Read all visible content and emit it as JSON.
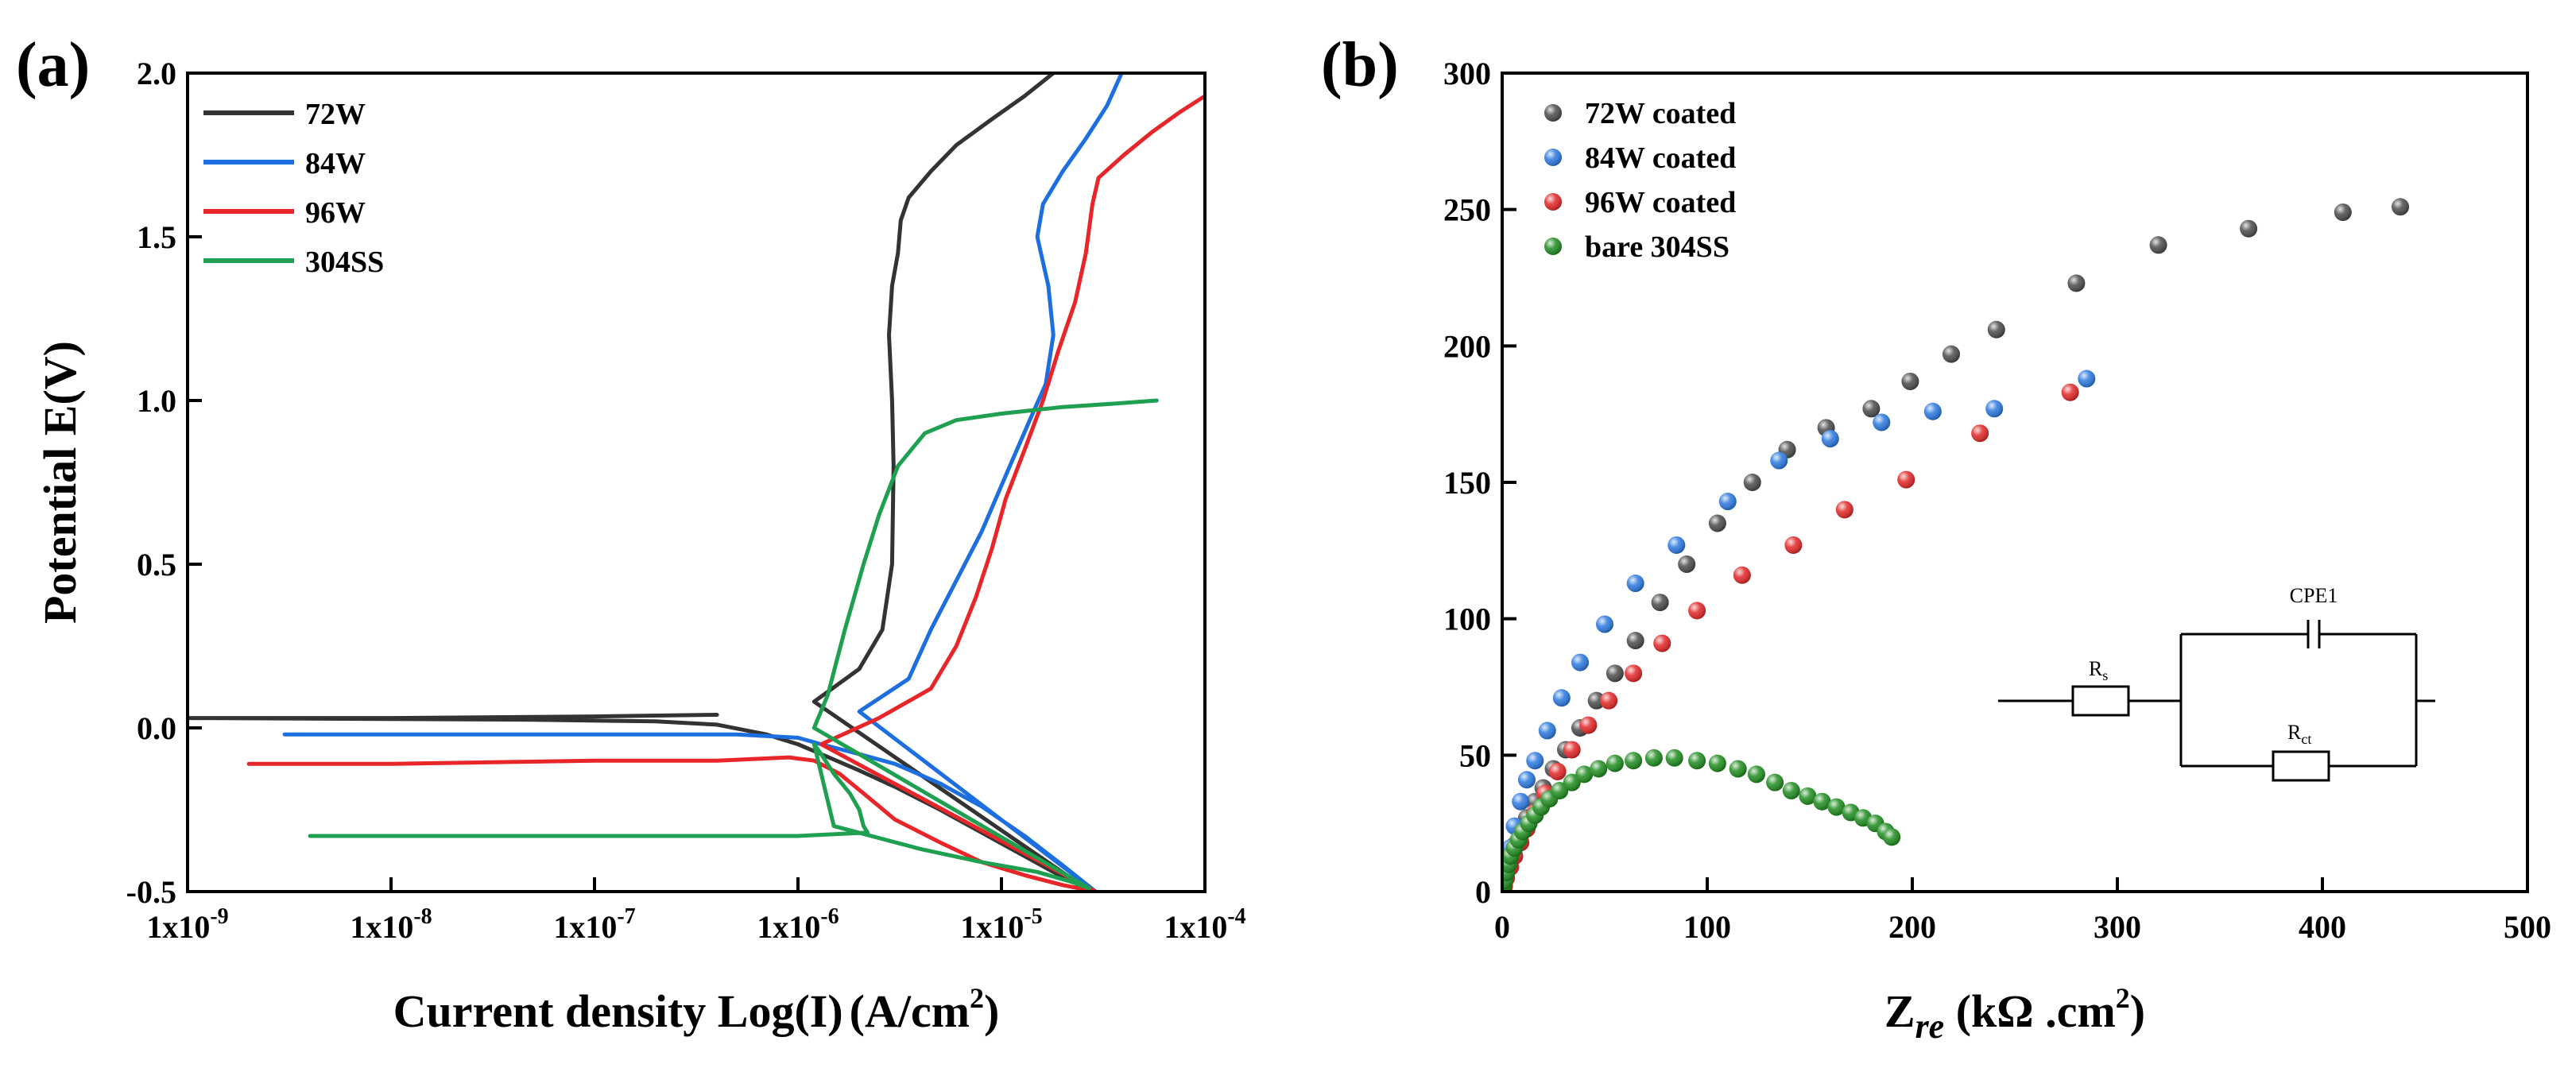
{
  "chart_data": [
    {
      "panel": "(a)",
      "type": "line",
      "title": "",
      "xlabel": "Current density Log(I)",
      "xlabel_unit": "A/cm",
      "xlabel_sup": "2",
      "ylabel": "Potential E(V)",
      "xscale": "log",
      "xlim": [
        1e-09,
        0.0001
      ],
      "ylim": [
        -0.5,
        2.0
      ],
      "x_ticks": [
        {
          "value": 1e-09,
          "mantissa": "1x10",
          "exp": "-9"
        },
        {
          "value": 1e-08,
          "mantissa": "1x10",
          "exp": "-8"
        },
        {
          "value": 1e-07,
          "mantissa": "1x10",
          "exp": "-7"
        },
        {
          "value": 1e-06,
          "mantissa": "1x10",
          "exp": "-6"
        },
        {
          "value": 1e-05,
          "mantissa": "1x10",
          "exp": "-5"
        },
        {
          "value": 0.0001,
          "mantissa": "1x10",
          "exp": "-4"
        }
      ],
      "y_ticks": [
        {
          "value": -0.5,
          "label": "-0.5"
        },
        {
          "value": 0.0,
          "label": "0.0"
        },
        {
          "value": 0.5,
          "label": "0.5"
        },
        {
          "value": 1.0,
          "label": "1.0"
        },
        {
          "value": 1.5,
          "label": "1.5"
        },
        {
          "value": 2.0,
          "label": "2.0"
        }
      ],
      "legend_position": "top-left",
      "series": [
        {
          "name": "72W",
          "color": "#333333",
          "points": [
            [
              4e-07,
              0.04
            ],
            [
              1e-07,
              0.035
            ],
            [
              1e-08,
              0.03
            ],
            [
              1e-09,
              0.03
            ],
            [
              5e-08,
              0.025
            ],
            [
              2e-07,
              0.02
            ],
            [
              4e-07,
              0.01
            ],
            [
              7e-07,
              -0.02
            ],
            [
              1e-06,
              -0.05
            ],
            [
              1.3e-06,
              -0.08
            ],
            [
              2e-06,
              -0.13
            ],
            [
              3e-06,
              -0.18
            ],
            [
              5e-06,
              -0.25
            ],
            [
              8e-06,
              -0.32
            ],
            [
              1.2e-05,
              -0.38
            ],
            [
              1.8e-05,
              -0.44
            ],
            [
              2.6e-05,
              -0.49
            ],
            [
              1.2e-06,
              0.08
            ],
            [
              2e-06,
              0.18
            ],
            [
              2.6e-06,
              0.3
            ],
            [
              2.9e-06,
              0.5
            ],
            [
              2.95e-06,
              0.8
            ],
            [
              2.9e-06,
              1.0
            ],
            [
              2.8e-06,
              1.2
            ],
            [
              2.9e-06,
              1.35
            ],
            [
              3.1e-06,
              1.45
            ],
            [
              3.2e-06,
              1.55
            ],
            [
              3.5e-06,
              1.62
            ],
            [
              4.5e-06,
              1.7
            ],
            [
              6e-06,
              1.78
            ],
            [
              9e-06,
              1.86
            ],
            [
              1.3e-05,
              1.93
            ],
            [
              1.8e-05,
              2.0
            ]
          ]
        },
        {
          "name": "84W",
          "color": "#1d6fe0",
          "points": [
            [
              3e-09,
              -0.02
            ],
            [
              1e-08,
              -0.02
            ],
            [
              1e-07,
              -0.02
            ],
            [
              5e-07,
              -0.02
            ],
            [
              1e-06,
              -0.03
            ],
            [
              1.3e-06,
              -0.05
            ],
            [
              2e-06,
              -0.08
            ],
            [
              3e-06,
              -0.11
            ],
            [
              5e-06,
              -0.17
            ],
            [
              8e-06,
              -0.24
            ],
            [
              1.3e-05,
              -0.33
            ],
            [
              2e-05,
              -0.42
            ],
            [
              2.9e-05,
              -0.5
            ],
            [
              2e-06,
              0.05
            ],
            [
              3.5e-06,
              0.15
            ],
            [
              4.5e-06,
              0.3
            ],
            [
              6e-06,
              0.45
            ],
            [
              8e-06,
              0.6
            ],
            [
              1.1e-05,
              0.8
            ],
            [
              1.4e-05,
              0.95
            ],
            [
              1.65e-05,
              1.05
            ],
            [
              1.8e-05,
              1.2
            ],
            [
              1.7e-05,
              1.35
            ],
            [
              1.5e-05,
              1.5
            ],
            [
              1.6e-05,
              1.6
            ],
            [
              2e-05,
              1.7
            ],
            [
              2.6e-05,
              1.8
            ],
            [
              3.3e-05,
              1.9
            ],
            [
              3.9e-05,
              2.0
            ]
          ]
        },
        {
          "name": "96W",
          "color": "#e8262a",
          "points": [
            [
              2e-09,
              -0.11
            ],
            [
              1e-08,
              -0.11
            ],
            [
              1e-07,
              -0.1
            ],
            [
              4e-07,
              -0.1
            ],
            [
              9e-07,
              -0.09
            ],
            [
              1.2e-06,
              -0.1
            ],
            [
              1.6e-06,
              -0.14
            ],
            [
              2.1e-06,
              -0.2
            ],
            [
              3e-06,
              -0.28
            ],
            [
              5e-06,
              -0.35
            ],
            [
              8e-06,
              -0.41
            ],
            [
              1.3e-05,
              -0.45
            ],
            [
              2e-05,
              -0.48
            ],
            [
              2.9e-05,
              -0.5
            ],
            [
              1.3e-06,
              -0.05
            ],
            [
              2.5e-06,
              0.03
            ],
            [
              4.5e-06,
              0.12
            ],
            [
              6e-06,
              0.25
            ],
            [
              7.5e-06,
              0.4
            ],
            [
              9e-06,
              0.55
            ],
            [
              1.05e-05,
              0.7
            ],
            [
              1.3e-05,
              0.85
            ],
            [
              1.6e-05,
              1.0
            ],
            [
              1.9e-05,
              1.15
            ],
            [
              2.3e-05,
              1.3
            ],
            [
              2.6e-05,
              1.45
            ],
            [
              2.8e-05,
              1.6
            ],
            [
              3e-05,
              1.68
            ],
            [
              4e-05,
              1.75
            ],
            [
              5.5e-05,
              1.82
            ],
            [
              7.5e-05,
              1.88
            ],
            [
              0.0001,
              1.93
            ]
          ]
        },
        {
          "name": "304SS",
          "color": "#1ea050",
          "points": [
            [
              4e-09,
              -0.33
            ],
            [
              1e-08,
              -0.33
            ],
            [
              1e-07,
              -0.33
            ],
            [
              1e-06,
              -0.33
            ],
            [
              2.2e-06,
              -0.32
            ],
            [
              2.1e-06,
              -0.3
            ],
            [
              2e-06,
              -0.25
            ],
            [
              1.8e-06,
              -0.2
            ],
            [
              1.5e-06,
              -0.14
            ],
            [
              1.3e-06,
              -0.08
            ],
            [
              1.2e-06,
              -0.05
            ],
            [
              1.5e-06,
              -0.3
            ],
            [
              4e-06,
              -0.37
            ],
            [
              8e-06,
              -0.41
            ],
            [
              1.5e-05,
              -0.44
            ],
            [
              2.2e-05,
              -0.47
            ],
            [
              2.7e-05,
              -0.49
            ],
            [
              1.2e-06,
              0.0
            ],
            [
              1.4e-06,
              0.1
            ],
            [
              1.7e-06,
              0.3
            ],
            [
              2.1e-06,
              0.5
            ],
            [
              2.5e-06,
              0.65
            ],
            [
              3.1e-06,
              0.8
            ],
            [
              4.2e-06,
              0.9
            ],
            [
              6e-06,
              0.94
            ],
            [
              1e-05,
              0.96
            ],
            [
              2e-05,
              0.98
            ],
            [
              3.5e-05,
              0.99
            ],
            [
              5.8e-05,
              1.0
            ]
          ]
        }
      ]
    },
    {
      "panel": "(b)",
      "type": "scatter",
      "title": "",
      "xlabel": "Z",
      "xlabel_sub": "re",
      "xlabel_unit": " (kΩ .cm",
      "xlabel_sup": "2",
      "xlabel_close": ")",
      "xlim": [
        0,
        500
      ],
      "ylim": [
        0,
        300
      ],
      "x_ticks": [
        0,
        100,
        200,
        300,
        400,
        500
      ],
      "y_ticks": [
        0,
        50,
        100,
        150,
        200,
        250,
        300
      ],
      "legend_position": "top-left",
      "circuit": {
        "cpe_label": "CPE1",
        "rs_main": "R",
        "rs_sub": "s",
        "rct_main": "R",
        "rct_sub": "ct"
      },
      "series": [
        {
          "name": "72W coated",
          "color": "#4a4a4a",
          "points": [
            [
              1,
              3
            ],
            [
              2,
              7
            ],
            [
              4,
              12
            ],
            [
              6,
              17
            ],
            [
              9,
              22
            ],
            [
              12,
              27
            ],
            [
              16,
              33
            ],
            [
              20,
              38
            ],
            [
              25,
              45
            ],
            [
              31,
              52
            ],
            [
              38,
              60
            ],
            [
              46,
              70
            ],
            [
              55,
              80
            ],
            [
              65,
              92
            ],
            [
              77,
              106
            ],
            [
              90,
              120
            ],
            [
              105,
              135
            ],
            [
              122,
              150
            ],
            [
              139,
              162
            ],
            [
              158,
              170
            ],
            [
              180,
              177
            ],
            [
              199,
              187
            ],
            [
              219,
              197
            ],
            [
              241,
              206
            ],
            [
              280,
              223
            ],
            [
              320,
              237
            ],
            [
              364,
              243
            ],
            [
              410,
              249
            ],
            [
              438,
              251
            ]
          ]
        },
        {
          "name": "84W coated",
          "color": "#2a78e0",
          "points": [
            [
              1,
              4
            ],
            [
              2,
              9
            ],
            [
              4,
              16
            ],
            [
              6,
              24
            ],
            [
              9,
              33
            ],
            [
              12,
              41
            ],
            [
              16,
              48
            ],
            [
              22,
              59
            ],
            [
              29,
              71
            ],
            [
              38,
              84
            ],
            [
              50,
              98
            ],
            [
              65,
              113
            ],
            [
              85,
              127
            ],
            [
              110,
              143
            ],
            [
              135,
              158
            ],
            [
              160,
              166
            ],
            [
              185,
              172
            ],
            [
              210,
              176
            ],
            [
              240,
              177
            ],
            [
              285,
              188
            ]
          ]
        },
        {
          "name": "96W coated",
          "color": "#e32626",
          "points": [
            [
              1,
              2
            ],
            [
              2,
              5
            ],
            [
              4,
              9
            ],
            [
              6,
              13
            ],
            [
              9,
              18
            ],
            [
              12,
              23
            ],
            [
              16,
              29
            ],
            [
              21,
              36
            ],
            [
              27,
              44
            ],
            [
              34,
              52
            ],
            [
              42,
              61
            ],
            [
              52,
              70
            ],
            [
              64,
              80
            ],
            [
              78,
              91
            ],
            [
              95,
              103
            ],
            [
              117,
              116
            ],
            [
              142,
              127
            ],
            [
              167,
              140
            ],
            [
              197,
              151
            ],
            [
              233,
              168
            ],
            [
              277,
              183
            ]
          ]
        },
        {
          "name": "bare 304SS",
          "color": "#1e8c1e",
          "points": [
            [
              0.5,
              2
            ],
            [
              1,
              4
            ],
            [
              2,
              7
            ],
            [
              3,
              10
            ],
            [
              4,
              13
            ],
            [
              6,
              16
            ],
            [
              8,
              19
            ],
            [
              10,
              22
            ],
            [
              13,
              25
            ],
            [
              16,
              28
            ],
            [
              19,
              31
            ],
            [
              23,
              34
            ],
            [
              28,
              37
            ],
            [
              34,
              40
            ],
            [
              40,
              43
            ],
            [
              47,
              45
            ],
            [
              55,
              47
            ],
            [
              64,
              48
            ],
            [
              74,
              49
            ],
            [
              84,
              49
            ],
            [
              95,
              48
            ],
            [
              105,
              47
            ],
            [
              115,
              45
            ],
            [
              124,
              43
            ],
            [
              133,
              40
            ],
            [
              141,
              37
            ],
            [
              149,
              35
            ],
            [
              156,
              33
            ],
            [
              163,
              31
            ],
            [
              170,
              29
            ],
            [
              176,
              27
            ],
            [
              182,
              25
            ],
            [
              187,
              22
            ],
            [
              190,
              20
            ]
          ]
        }
      ]
    }
  ]
}
